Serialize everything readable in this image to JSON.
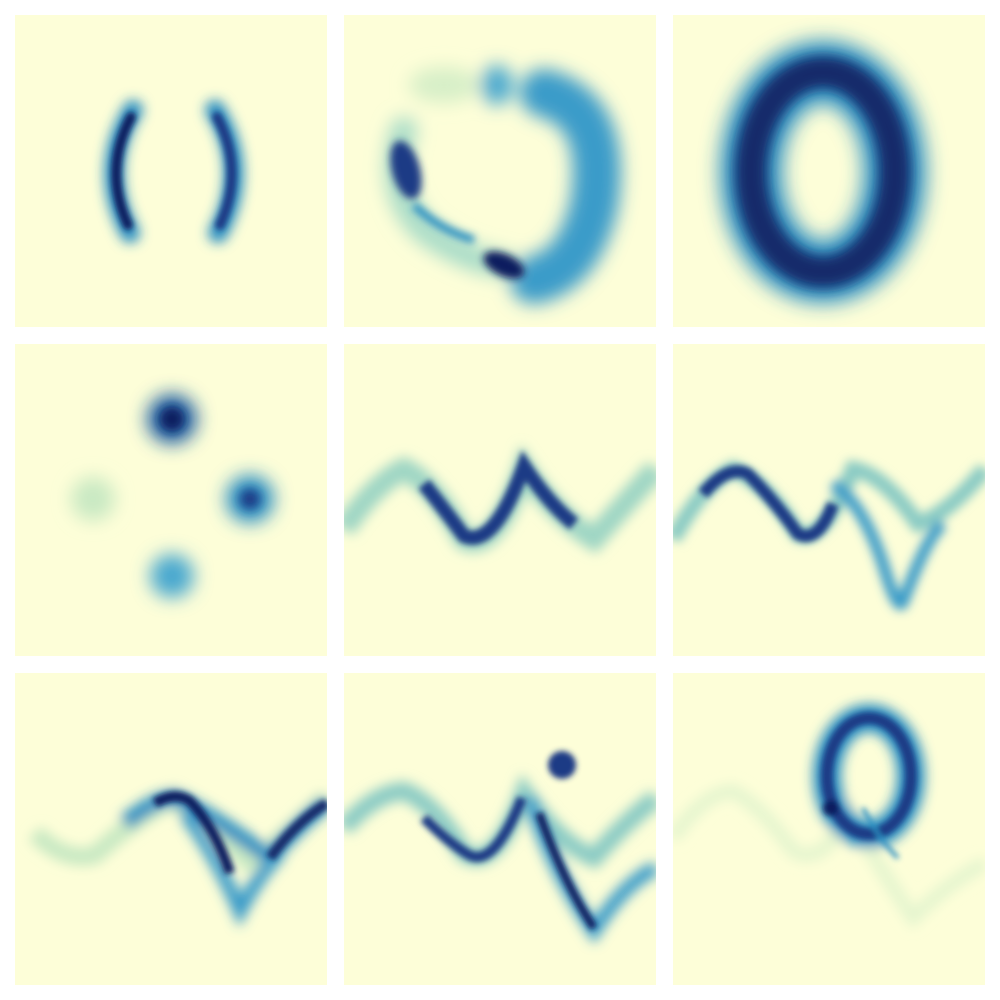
{
  "colors": {
    "background": "#fdfed8",
    "page": "#ffffff",
    "light": "#a8dcc8",
    "mid": "#2c8fc2",
    "dark": "#1a3b85",
    "darkest": "#0c1f5e"
  },
  "panels": [
    {
      "name": "panel-two-arcs"
    },
    {
      "name": "panel-broken-ring"
    },
    {
      "name": "panel-thick-ring"
    },
    {
      "name": "panel-four-blobs"
    },
    {
      "name": "panel-single-wave"
    },
    {
      "name": "panel-split-wave"
    },
    {
      "name": "panel-double-wave"
    },
    {
      "name": "panel-wave-with-dot"
    },
    {
      "name": "panel-wave-with-ring"
    }
  ]
}
